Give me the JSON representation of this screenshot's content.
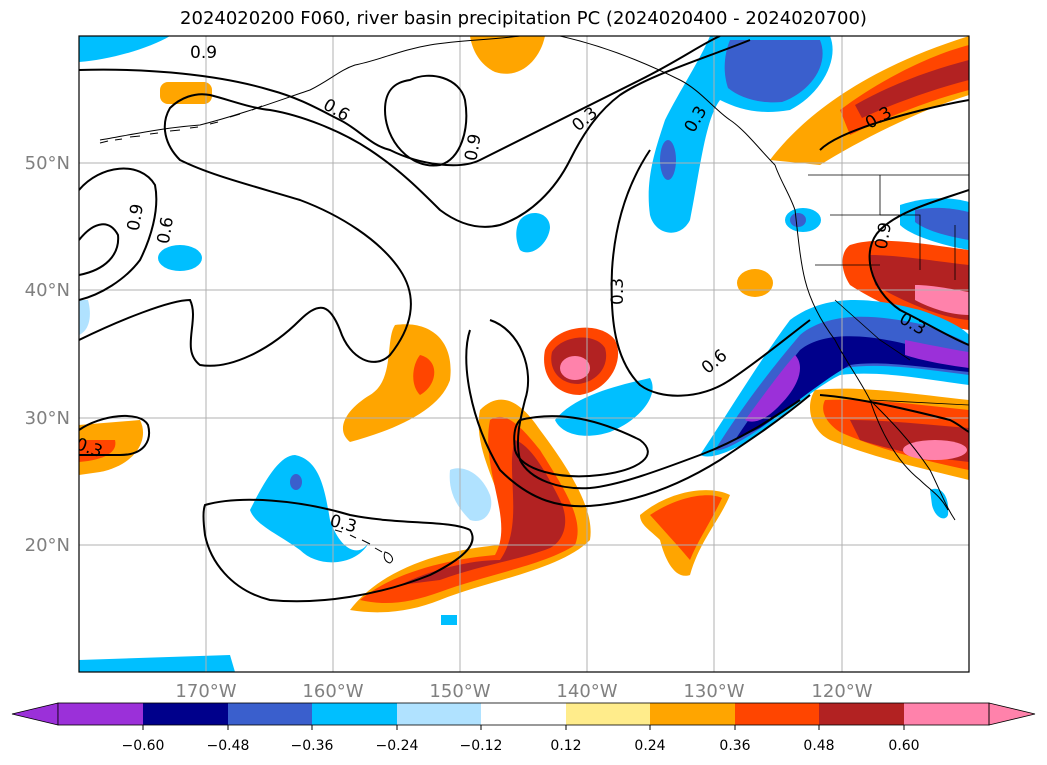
{
  "title": "2024020200 F060, river basin precipitation PC (2024020400 - 2024020700)",
  "map": {
    "lon_labels": [
      "170°W",
      "160°W",
      "150°W",
      "140°W",
      "130°W",
      "120°W"
    ],
    "lat_labels": [
      "50°N",
      "40°N",
      "30°N",
      "20°N"
    ],
    "contour_labels": [
      "0.9",
      "0.6",
      "0.3",
      "0.9",
      "0.6",
      "0.9",
      "0.3",
      "0.3",
      "0.6",
      "0.3",
      "0.3",
      "0.3",
      "0.9",
      "0.3"
    ],
    "colors": {
      "axis_text": "#808080",
      "grid": "#b0b0b0",
      "contour": "#000000"
    }
  },
  "colorbar": {
    "tick_labels": [
      "−0.60",
      "−0.48",
      "−0.36",
      "−0.24",
      "−0.12",
      "0.12",
      "0.24",
      "0.36",
      "0.48",
      "0.60"
    ],
    "colors": [
      "#9b30d9",
      "#00008b",
      "#3a5fcd",
      "#00bfff",
      "#b0e2ff",
      "#ffffff",
      "#ffec8b",
      "#ffa500",
      "#ff4500",
      "#b22222",
      "#ff82ab"
    ]
  }
}
